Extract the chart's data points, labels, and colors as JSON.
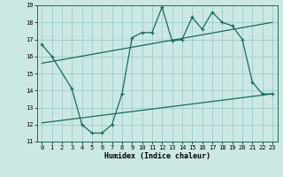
{
  "xlabel": "Humidex (Indice chaleur)",
  "bg_color": "#cce8e5",
  "grid_color": "#9eccc8",
  "line_color": "#1a6b5a",
  "xlim": [
    -0.5,
    23.5
  ],
  "ylim": [
    11,
    19
  ],
  "xticks": [
    0,
    1,
    2,
    3,
    4,
    5,
    6,
    7,
    8,
    9,
    10,
    11,
    12,
    13,
    14,
    15,
    16,
    17,
    18,
    19,
    20,
    21,
    22,
    23
  ],
  "yticks": [
    11,
    12,
    13,
    14,
    15,
    16,
    17,
    18,
    19
  ],
  "line1_x": [
    0,
    1,
    3,
    4,
    5,
    6,
    7,
    8,
    9,
    10,
    11,
    12,
    13,
    14,
    15,
    16,
    17,
    18,
    19,
    20,
    21,
    22,
    23
  ],
  "line1_y": [
    16.7,
    16.0,
    14.1,
    12.0,
    11.5,
    11.5,
    12.0,
    13.8,
    17.1,
    17.4,
    17.4,
    18.9,
    16.9,
    17.0,
    18.3,
    17.6,
    18.6,
    18.0,
    17.8,
    17.0,
    14.5,
    13.8,
    13.8
  ],
  "line2_x": [
    0,
    23
  ],
  "line2_y": [
    15.6,
    18.0
  ],
  "line3_x": [
    0,
    23
  ],
  "line3_y": [
    12.1,
    13.8
  ]
}
